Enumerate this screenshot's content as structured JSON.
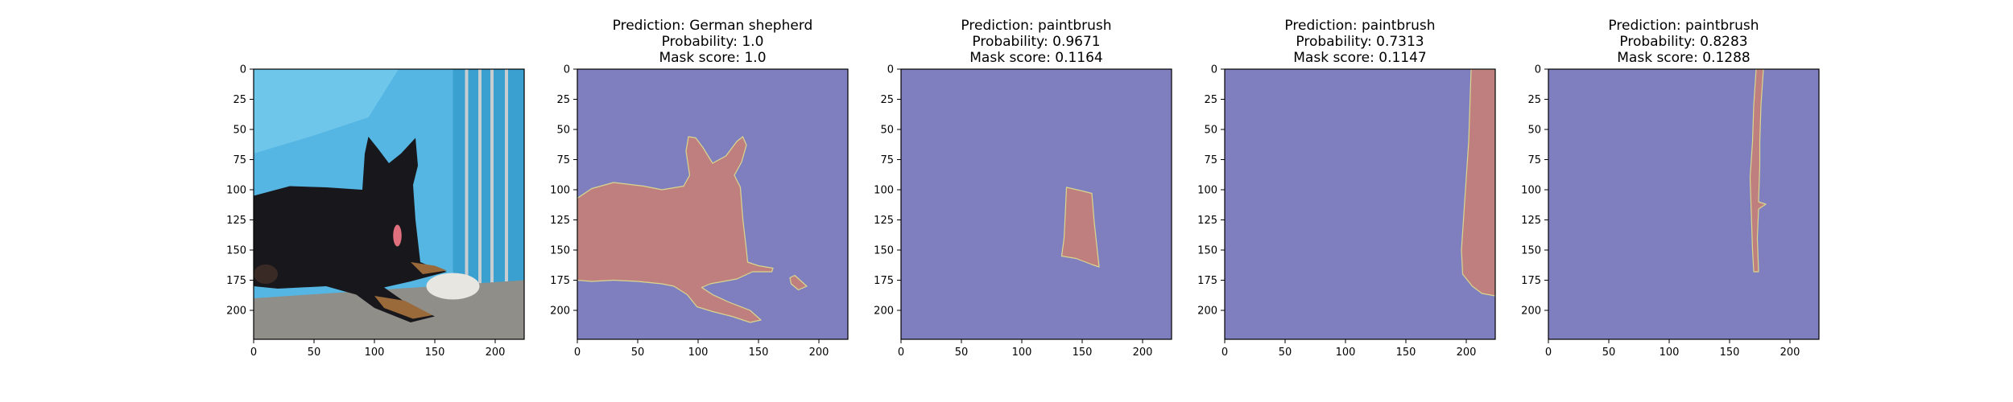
{
  "chart_data": [
    {
      "type": "image",
      "content": "photo",
      "photo_description": "black German shepherd dog lying on gravel in front of a blue tarp and chain-link fence",
      "title_lines": [],
      "xlim": [
        0,
        224
      ],
      "ylim": [
        224,
        0
      ],
      "x_ticks": [
        0,
        50,
        100,
        150,
        200
      ],
      "y_ticks": [
        0,
        25,
        50,
        75,
        100,
        125,
        150,
        175,
        200
      ]
    },
    {
      "type": "image",
      "content": "mask",
      "title_lines": [
        "Prediction: German shepherd",
        "Probability: 1.0",
        "Mask score: 1.0"
      ],
      "mask_polygons": [
        [
          [
            0,
            107
          ],
          [
            12,
            99
          ],
          [
            30,
            94
          ],
          [
            55,
            97
          ],
          [
            70,
            100
          ],
          [
            88,
            97
          ],
          [
            93,
            88
          ],
          [
            90,
            68
          ],
          [
            92,
            56
          ],
          [
            98,
            57
          ],
          [
            104,
            65
          ],
          [
            112,
            78
          ],
          [
            123,
            72
          ],
          [
            132,
            60
          ],
          [
            137,
            56
          ],
          [
            140,
            63
          ],
          [
            136,
            77
          ],
          [
            130,
            88
          ],
          [
            135,
            98
          ],
          [
            137,
            124
          ],
          [
            140,
            150
          ],
          [
            141,
            160
          ],
          [
            150,
            163
          ],
          [
            162,
            165
          ],
          [
            161,
            168
          ],
          [
            145,
            168
          ],
          [
            132,
            174
          ],
          [
            110,
            178
          ],
          [
            103,
            181
          ],
          [
            112,
            187
          ],
          [
            125,
            193
          ],
          [
            143,
            200
          ],
          [
            152,
            208
          ],
          [
            143,
            210
          ],
          [
            128,
            205
          ],
          [
            112,
            201
          ],
          [
            99,
            197
          ],
          [
            91,
            187
          ],
          [
            80,
            180
          ],
          [
            70,
            178
          ],
          [
            50,
            176
          ],
          [
            30,
            175
          ],
          [
            12,
            176
          ],
          [
            0,
            175
          ]
        ],
        [
          [
            176,
            173
          ],
          [
            180,
            171
          ],
          [
            190,
            180
          ],
          [
            183,
            183
          ],
          [
            177,
            178
          ]
        ]
      ],
      "xlim": [
        0,
        224
      ],
      "ylim": [
        224,
        0
      ],
      "x_ticks": [
        0,
        50,
        100,
        150,
        200
      ],
      "y_ticks": [
        0,
        25,
        50,
        75,
        100,
        125,
        150,
        175,
        200
      ]
    },
    {
      "type": "image",
      "content": "mask",
      "title_lines": [
        "Prediction: paintbrush",
        "Probability: 0.9671",
        "Mask score: 0.1164"
      ],
      "mask_polygons": [
        [
          [
            137,
            98
          ],
          [
            150,
            101
          ],
          [
            158,
            103
          ],
          [
            160,
            127
          ],
          [
            164,
            164
          ],
          [
            158,
            162
          ],
          [
            145,
            157
          ],
          [
            133,
            155
          ],
          [
            135,
            140
          ],
          [
            136,
            120
          ]
        ]
      ],
      "xlim": [
        0,
        224
      ],
      "ylim": [
        224,
        0
      ],
      "x_ticks": [
        0,
        50,
        100,
        150,
        200
      ],
      "y_ticks": [
        0,
        25,
        50,
        75,
        100,
        125,
        150,
        175,
        200
      ]
    },
    {
      "type": "image",
      "content": "mask",
      "title_lines": [
        "Prediction: paintbrush",
        "Probability: 0.7313",
        "Mask score: 0.1147"
      ],
      "mask_polygons": [
        [
          [
            204,
            0
          ],
          [
            224,
            0
          ],
          [
            224,
            188
          ],
          [
            213,
            186
          ],
          [
            205,
            180
          ],
          [
            197,
            170
          ],
          [
            196,
            150
          ],
          [
            198,
            120
          ],
          [
            200,
            90
          ],
          [
            202,
            60
          ],
          [
            203,
            30
          ]
        ]
      ],
      "xlim": [
        0,
        224
      ],
      "ylim": [
        224,
        0
      ],
      "x_ticks": [
        0,
        50,
        100,
        150,
        200
      ],
      "y_ticks": [
        0,
        25,
        50,
        75,
        100,
        125,
        150,
        175,
        200
      ]
    },
    {
      "type": "image",
      "content": "mask",
      "title_lines": [
        "Prediction: paintbrush",
        "Probability: 0.8283",
        "Mask score: 0.1288"
      ],
      "mask_polygons": [
        [
          [
            172,
            0
          ],
          [
            178,
            0
          ],
          [
            176,
            30
          ],
          [
            175,
            60
          ],
          [
            175,
            80
          ],
          [
            174,
            110
          ],
          [
            180,
            112
          ],
          [
            174,
            116
          ],
          [
            173,
            140
          ],
          [
            174,
            168
          ],
          [
            170,
            168
          ],
          [
            169,
            150
          ],
          [
            168,
            120
          ],
          [
            167,
            90
          ],
          [
            169,
            60
          ],
          [
            170,
            30
          ]
        ]
      ],
      "xlim": [
        0,
        224
      ],
      "ylim": [
        224,
        0
      ],
      "x_ticks": [
        0,
        50,
        100,
        150,
        200
      ],
      "y_ticks": [
        0,
        25,
        50,
        75,
        100,
        125,
        150,
        175,
        200
      ]
    }
  ],
  "colors": {
    "mask_background": "#7f7fbf",
    "mask_foreground": "#bf7f7f",
    "mask_edge": "#d9d78c",
    "tarp": "#55b6e3",
    "tarp_light": "#7fd0f0",
    "fence": "#c8cdd2",
    "ground": "#8f8e89",
    "dog": "#18181c",
    "tan": "#9a6a3a",
    "tongue": "#e0707e"
  }
}
